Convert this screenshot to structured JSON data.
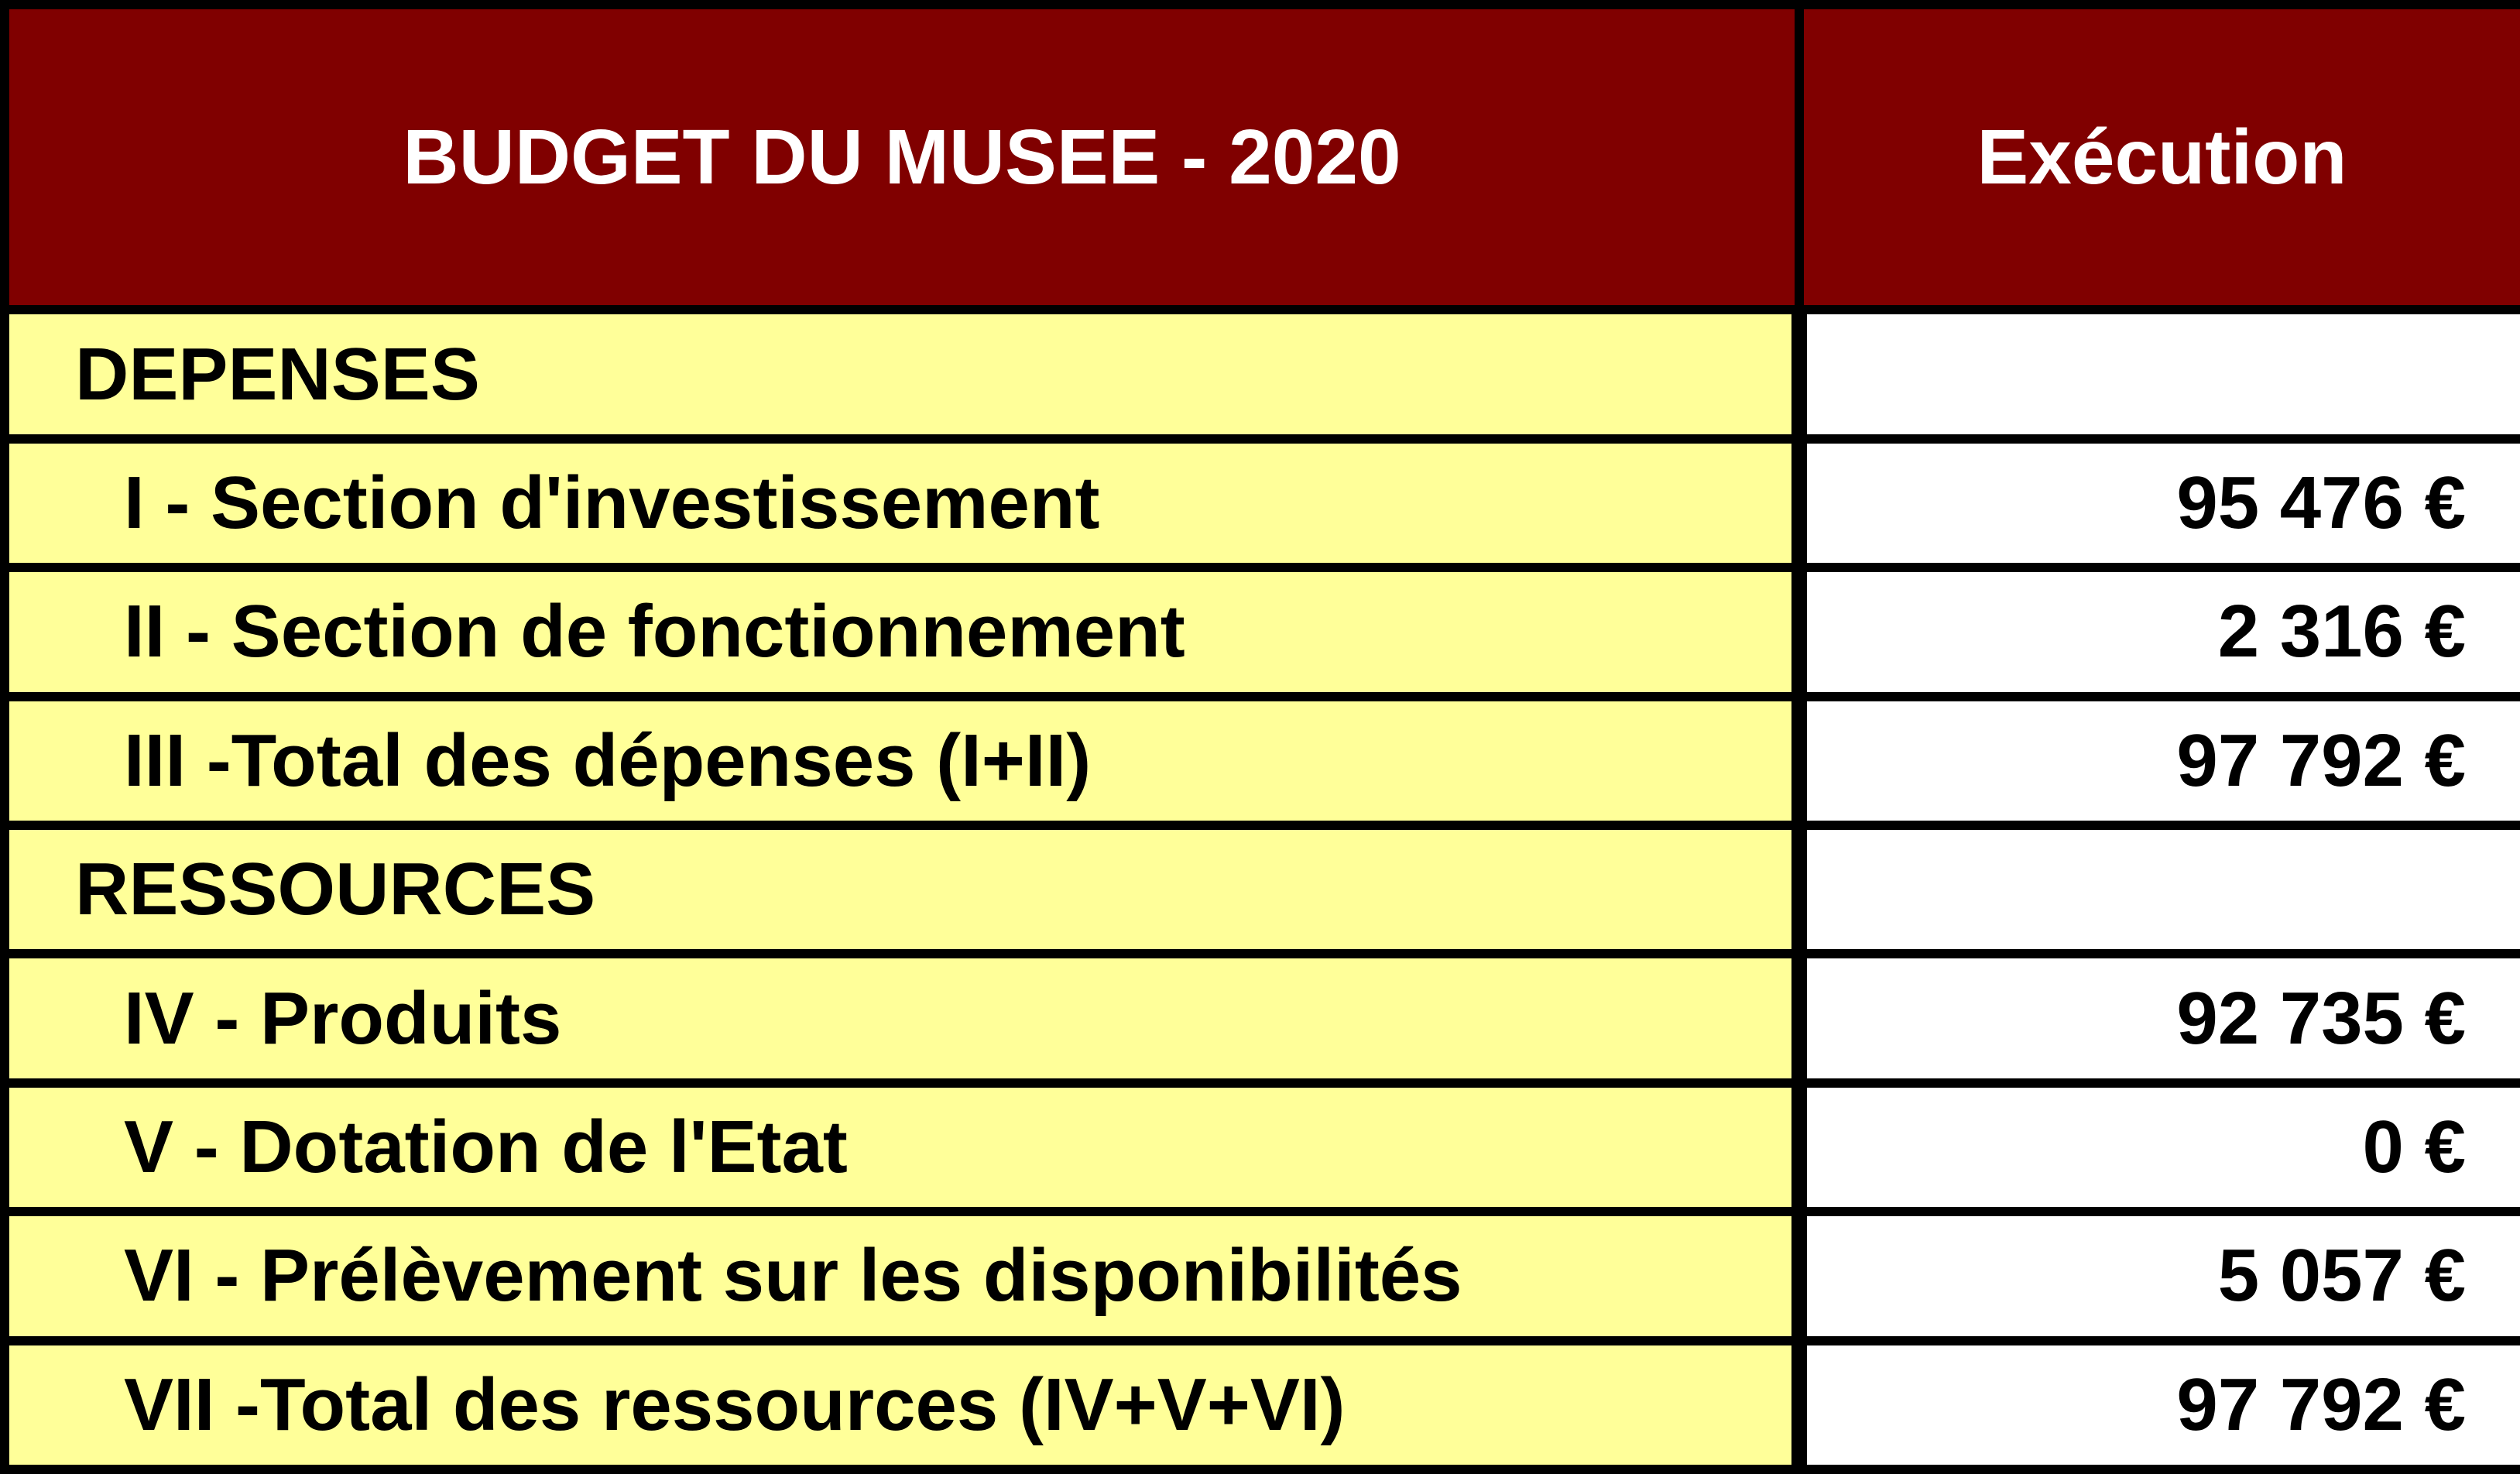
{
  "chart_data": {
    "type": "table",
    "title": "BUDGET DU MUSEE - 2020",
    "columns": [
      "BUDGET DU MUSEE - 2020",
      "Exécution"
    ],
    "currency": "EUR",
    "rows": [
      {
        "label": "DEPENSES",
        "value_eur": null,
        "kind": "section"
      },
      {
        "label": "I - Section d'investissement",
        "value_eur": 95476,
        "kind": "item"
      },
      {
        "label": "II - Section de fonctionnement",
        "value_eur": 2316,
        "kind": "item"
      },
      {
        "label": "III -Total des dépenses (I+II)",
        "value_eur": 97792,
        "kind": "total"
      },
      {
        "label": "RESSOURCES",
        "value_eur": null,
        "kind": "section"
      },
      {
        "label": "IV - Produits",
        "value_eur": 92735,
        "kind": "item"
      },
      {
        "label": "V - Dotation de l'Etat",
        "value_eur": 0,
        "kind": "item"
      },
      {
        "label": "VI - Prélèvement sur les disponibilités",
        "value_eur": 5057,
        "kind": "item"
      },
      {
        "label": "VII -Total des ressources (IV+V+VI)",
        "value_eur": 97792,
        "kind": "total"
      }
    ]
  },
  "ui": {
    "header": {
      "title": "BUDGET DU MUSEE - 2020",
      "value_column": "Exécution"
    },
    "rows": [
      {
        "label": "DEPENSES",
        "value": ""
      },
      {
        "label": "I - Section d'investissement",
        "value": "95 476 €"
      },
      {
        "label": "II - Section de fonctionnement",
        "value": "2 316 €"
      },
      {
        "label": "III -Total des dépenses (I+II)",
        "value": "97 792 €"
      },
      {
        "label": "RESSOURCES",
        "value": ""
      },
      {
        "label": "IV - Produits",
        "value": "92 735 €"
      },
      {
        "label": "V - Dotation de l'Etat",
        "value": "0 €"
      },
      {
        "label": "VI - Prélèvement sur les disponibilités",
        "value": "5 057 €"
      },
      {
        "label": "VII -Total des ressources (IV+V+VI)",
        "value": "97 792 €"
      }
    ],
    "colors": {
      "header_bg": "#800000",
      "header_text": "#FFFFFF",
      "label_bg": "#FFFF99",
      "value_bg": "#FFFFFF",
      "border": "#000000",
      "body_text": "#000000"
    }
  }
}
